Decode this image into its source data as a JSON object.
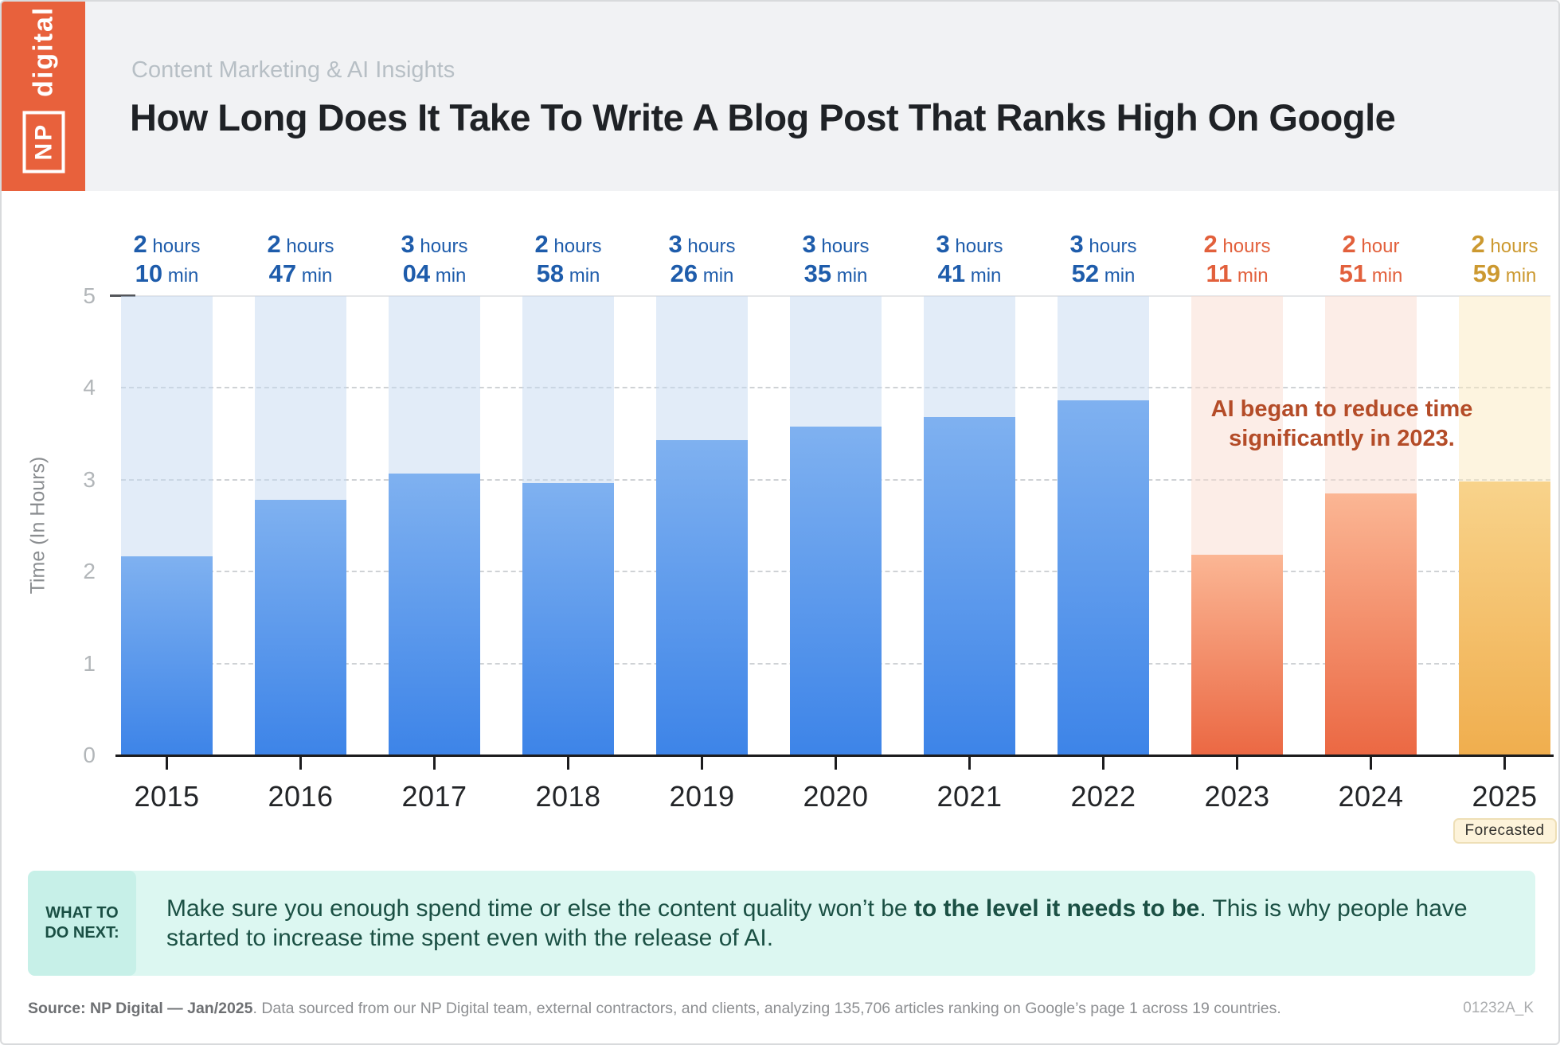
{
  "header": {
    "logo_np": "NP",
    "logo_digital": "digital",
    "eyebrow": "Content Marketing & AI Insights",
    "title": "How Long Does It Take To Write A Blog Post That Ranks High On Google"
  },
  "chart_data": {
    "type": "bar",
    "title": "How Long Does It Take To Write A Blog Post That Ranks High On Google",
    "xlabel": "",
    "ylabel": "Time (In Hours)",
    "ylim": [
      0,
      5
    ],
    "yticks": [
      0,
      1,
      2,
      3,
      4,
      5
    ],
    "grid": "horizontal-dashed",
    "legend_position": "none",
    "categories": [
      "2015",
      "2016",
      "2017",
      "2018",
      "2019",
      "2020",
      "2021",
      "2022",
      "2023",
      "2024",
      "2025"
    ],
    "values": [
      2.167,
      2.783,
      3.067,
      2.967,
      3.433,
      3.583,
      3.683,
      3.867,
      2.183,
      2.85,
      2.983
    ],
    "bars": [
      {
        "year": "2015",
        "hours": "2",
        "hours_unit": "hours",
        "minutes": "10",
        "minutes_unit": "min",
        "value": 2.167,
        "group": "blue"
      },
      {
        "year": "2016",
        "hours": "2",
        "hours_unit": "hours",
        "minutes": "47",
        "minutes_unit": "min",
        "value": 2.783,
        "group": "blue"
      },
      {
        "year": "2017",
        "hours": "3",
        "hours_unit": "hours",
        "minutes": "04",
        "minutes_unit": "min",
        "value": 3.067,
        "group": "blue"
      },
      {
        "year": "2018",
        "hours": "2",
        "hours_unit": "hours",
        "minutes": "58",
        "minutes_unit": "min",
        "value": 2.967,
        "group": "blue"
      },
      {
        "year": "2019",
        "hours": "3",
        "hours_unit": "hours",
        "minutes": "26",
        "minutes_unit": "min",
        "value": 3.433,
        "group": "blue"
      },
      {
        "year": "2020",
        "hours": "3",
        "hours_unit": "hours",
        "minutes": "35",
        "minutes_unit": "min",
        "value": 3.583,
        "group": "blue"
      },
      {
        "year": "2021",
        "hours": "3",
        "hours_unit": "hours",
        "minutes": "41",
        "minutes_unit": "min",
        "value": 3.683,
        "group": "blue"
      },
      {
        "year": "2022",
        "hours": "3",
        "hours_unit": "hours",
        "minutes": "52",
        "minutes_unit": "min",
        "value": 3.867,
        "group": "blue"
      },
      {
        "year": "2023",
        "hours": "2",
        "hours_unit": "hours",
        "minutes": "11",
        "minutes_unit": "min",
        "value": 2.183,
        "group": "orange"
      },
      {
        "year": "2024",
        "hours": "2",
        "hours_unit": "hour",
        "minutes": "51",
        "minutes_unit": "min",
        "value": 2.85,
        "group": "orange"
      },
      {
        "year": "2025",
        "hours": "2",
        "hours_unit": "hours",
        "minutes": "59",
        "minutes_unit": "min",
        "value": 2.983,
        "group": "gold",
        "badge": "Forecasted"
      }
    ],
    "annotation": {
      "line1": "AI began to reduce time",
      "line2": "significantly in 2023."
    },
    "forecast_badge": "Forecasted"
  },
  "colors": {
    "logo_orange": "#e8613c",
    "bar_blue_top": "#7fb1f0",
    "bar_blue_bottom": "#3d84e8",
    "track_blue": "#e2ecf8",
    "label_blue": "#1e5cab",
    "bar_orange_top": "#fbb694",
    "bar_orange_bottom": "#eb6843",
    "track_orange": "#fcede7",
    "label_orange": "#e2603c",
    "bar_gold_top": "#f8d38b",
    "bar_gold_bottom": "#f0ae4e",
    "track_gold": "#fdf4df",
    "label_gold": "#cc9930",
    "annotation_text": "#b44c28",
    "callout_bg": "#dcf7f1",
    "callout_label_bg": "#c7f0e8",
    "callout_text": "#1b5044"
  },
  "callout": {
    "label_line1": "WHAT TO",
    "label_line2": "DO NEXT:",
    "text_before": "Make sure you enough spend time or else the content quality won’t be ",
    "text_bold": "to the level it needs to be",
    "text_after": ". This is why people have started to increase time spent even with the release of AI."
  },
  "footer": {
    "source_bold": "Source: NP Digital — Jan/2025",
    "source_rest": ". Data sourced from our NP Digital team, external contractors, and clients, analyzing 135,706 articles ranking on Google’s page 1 across 19 countries.",
    "code": "01232A_K"
  }
}
